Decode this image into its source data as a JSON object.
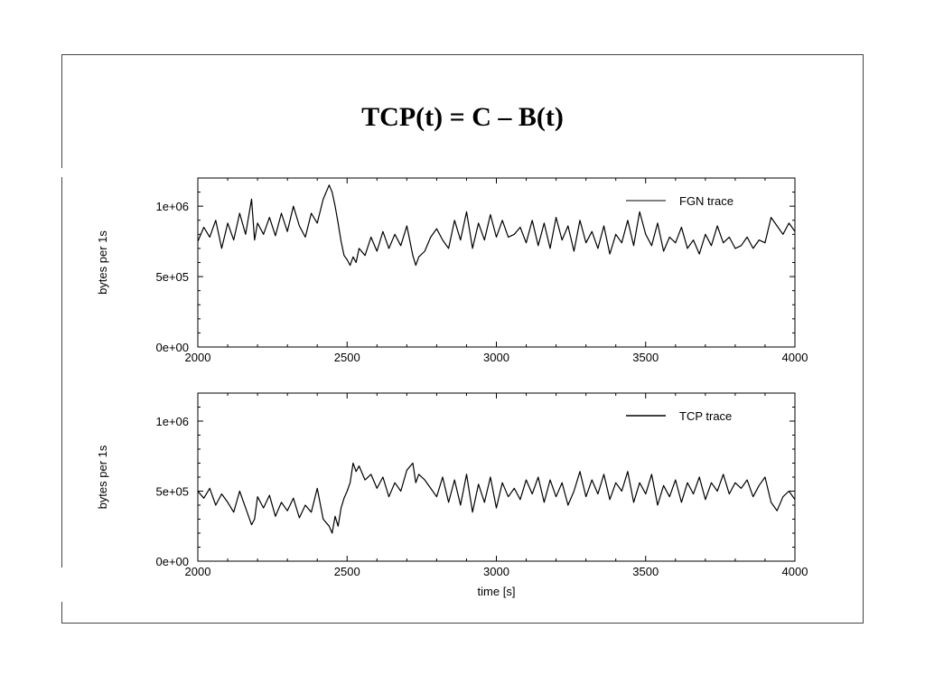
{
  "slide": {
    "title": "TCP(t) = C – B(t)"
  },
  "chart_data": [
    {
      "type": "line",
      "title": "",
      "xlabel": "",
      "ylabel": "bytes per 1s",
      "xlim": [
        2000,
        4000
      ],
      "ylim": [
        0,
        1200000
      ],
      "xticks": [
        "2000",
        "2500",
        "3000",
        "3500",
        "4000"
      ],
      "yticks": [
        "0e+00",
        "5e+05",
        "1e+06"
      ],
      "legend_position": "top-right",
      "grid": false,
      "series": [
        {
          "name": "FGN trace",
          "x": [
            2000,
            2020,
            2040,
            2060,
            2080,
            2100,
            2120,
            2140,
            2160,
            2180,
            2190,
            2200,
            2220,
            2240,
            2260,
            2280,
            2300,
            2320,
            2340,
            2360,
            2380,
            2400,
            2420,
            2440,
            2450,
            2460,
            2470,
            2480,
            2490,
            2500,
            2510,
            2520,
            2530,
            2540,
            2560,
            2580,
            2600,
            2620,
            2640,
            2660,
            2680,
            2700,
            2720,
            2730,
            2740,
            2760,
            2780,
            2800,
            2820,
            2840,
            2860,
            2880,
            2900,
            2920,
            2940,
            2960,
            2980,
            3000,
            3020,
            3040,
            3060,
            3080,
            3100,
            3120,
            3140,
            3160,
            3180,
            3200,
            3220,
            3240,
            3260,
            3280,
            3300,
            3320,
            3340,
            3360,
            3380,
            3400,
            3420,
            3440,
            3460,
            3480,
            3500,
            3520,
            3540,
            3560,
            3580,
            3600,
            3620,
            3640,
            3660,
            3680,
            3700,
            3720,
            3740,
            3760,
            3780,
            3800,
            3820,
            3840,
            3860,
            3880,
            3900,
            3920,
            3940,
            3960,
            3980,
            4000
          ],
          "values": [
            750000,
            850000,
            780000,
            900000,
            700000,
            880000,
            760000,
            950000,
            800000,
            1050000,
            760000,
            880000,
            800000,
            920000,
            790000,
            950000,
            820000,
            1000000,
            860000,
            780000,
            950000,
            880000,
            1050000,
            1150000,
            1100000,
            1000000,
            880000,
            750000,
            650000,
            620000,
            580000,
            640000,
            600000,
            700000,
            650000,
            780000,
            680000,
            820000,
            700000,
            800000,
            720000,
            860000,
            650000,
            580000,
            640000,
            680000,
            780000,
            840000,
            760000,
            700000,
            900000,
            760000,
            960000,
            700000,
            880000,
            760000,
            940000,
            780000,
            900000,
            780000,
            800000,
            850000,
            740000,
            900000,
            720000,
            880000,
            700000,
            920000,
            760000,
            860000,
            680000,
            900000,
            740000,
            820000,
            700000,
            860000,
            660000,
            800000,
            740000,
            900000,
            720000,
            960000,
            800000,
            720000,
            880000,
            680000,
            780000,
            740000,
            850000,
            700000,
            760000,
            660000,
            800000,
            720000,
            860000,
            740000,
            780000,
            700000,
            720000,
            780000,
            700000,
            760000,
            740000,
            920000,
            860000,
            800000,
            880000,
            820000
          ],
          "color": "#000000"
        }
      ]
    },
    {
      "type": "line",
      "title": "",
      "xlabel": "time [s]",
      "ylabel": "bytes per 1s",
      "xlim": [
        2000,
        4000
      ],
      "ylim": [
        0,
        1200000
      ],
      "xticks": [
        "2000",
        "2500",
        "3000",
        "3500",
        "4000"
      ],
      "yticks": [
        "0e+00",
        "5e+05",
        "1e+06"
      ],
      "legend_position": "top-right",
      "grid": false,
      "series": [
        {
          "name": "TCP trace",
          "x": [
            2000,
            2020,
            2040,
            2060,
            2080,
            2100,
            2120,
            2140,
            2160,
            2180,
            2190,
            2200,
            2220,
            2240,
            2260,
            2280,
            2300,
            2320,
            2340,
            2360,
            2380,
            2400,
            2420,
            2440,
            2450,
            2460,
            2470,
            2480,
            2490,
            2500,
            2510,
            2520,
            2530,
            2540,
            2560,
            2580,
            2600,
            2620,
            2640,
            2660,
            2680,
            2700,
            2720,
            2730,
            2740,
            2760,
            2780,
            2800,
            2820,
            2840,
            2860,
            2880,
            2900,
            2920,
            2940,
            2960,
            2980,
            3000,
            3020,
            3040,
            3060,
            3080,
            3100,
            3120,
            3140,
            3160,
            3180,
            3200,
            3220,
            3240,
            3260,
            3280,
            3300,
            3320,
            3340,
            3360,
            3380,
            3400,
            3420,
            3440,
            3460,
            3480,
            3500,
            3520,
            3540,
            3560,
            3580,
            3600,
            3620,
            3640,
            3660,
            3680,
            3700,
            3720,
            3740,
            3760,
            3780,
            3800,
            3820,
            3840,
            3860,
            3880,
            3900,
            3920,
            3940,
            3960,
            3980,
            4000
          ],
          "values": [
            500000,
            450000,
            520000,
            400000,
            480000,
            420000,
            350000,
            500000,
            380000,
            260000,
            300000,
            460000,
            380000,
            470000,
            320000,
            420000,
            360000,
            450000,
            310000,
            400000,
            350000,
            520000,
            300000,
            250000,
            200000,
            320000,
            250000,
            380000,
            450000,
            500000,
            560000,
            700000,
            640000,
            680000,
            580000,
            620000,
            520000,
            600000,
            460000,
            560000,
            500000,
            650000,
            700000,
            560000,
            620000,
            580000,
            520000,
            460000,
            600000,
            420000,
            580000,
            400000,
            620000,
            350000,
            550000,
            420000,
            600000,
            380000,
            560000,
            460000,
            520000,
            440000,
            580000,
            480000,
            600000,
            420000,
            580000,
            460000,
            560000,
            400000,
            500000,
            640000,
            460000,
            580000,
            480000,
            620000,
            440000,
            560000,
            500000,
            640000,
            420000,
            560000,
            480000,
            620000,
            400000,
            540000,
            460000,
            580000,
            420000,
            560000,
            480000,
            600000,
            440000,
            560000,
            500000,
            620000,
            480000,
            560000,
            520000,
            580000,
            460000,
            540000,
            600000,
            420000,
            360000,
            460000,
            500000,
            440000
          ],
          "color": "#000000"
        }
      ]
    }
  ]
}
